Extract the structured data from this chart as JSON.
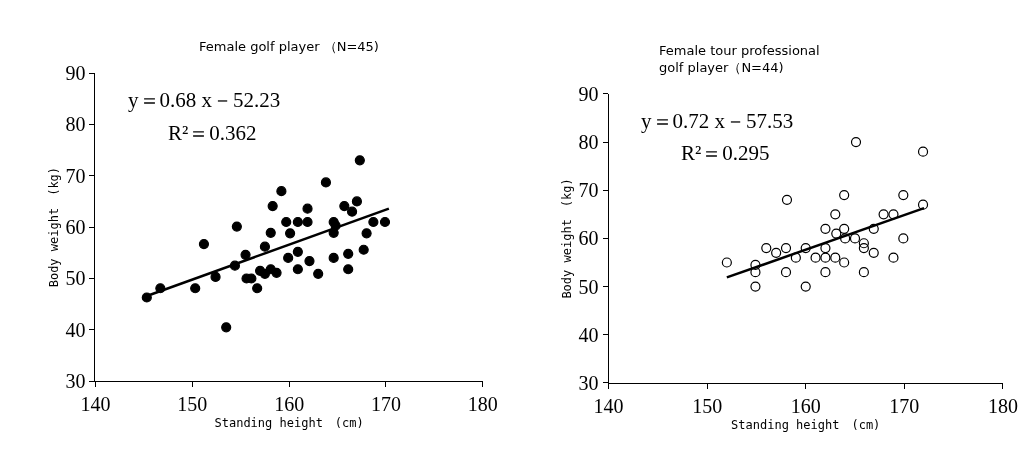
{
  "chart_data": [
    {
      "type": "scatter",
      "title": "Female golf player （N=45)",
      "xlabel": "Standing height　(cm)",
      "ylabel": "Body weight　(kg)",
      "xlim": [
        140,
        180
      ],
      "xticks": [
        140,
        150,
        160,
        170,
        180
      ],
      "ylim": [
        30,
        90
      ],
      "yticks": [
        30,
        40,
        50,
        60,
        70,
        80,
        90
      ],
      "annotations": [
        "y＝0.68 x－52.23",
        "R²＝0.362"
      ],
      "series": [
        {
          "color": "#000000",
          "marker": "circle",
          "x": [
            145.3,
            146.7,
            150.3,
            152.4,
            151.2,
            153.5,
            154.4,
            154.6,
            155.5,
            155.6,
            156.1,
            156.7,
            157.5,
            157.5,
            158.1,
            158.7,
            158.1,
            158.3,
            159.2,
            159.7,
            160.1,
            159.9,
            160.9,
            160.9,
            160.9,
            161.9,
            161.9,
            162.1,
            163.0,
            163.8,
            164.6,
            164.8,
            164.6,
            164.6,
            165.7,
            166.5,
            166.1,
            166.1,
            167.0,
            167.3,
            167.7,
            168.0,
            168.7,
            169.9,
            157.0
          ],
          "values": [
            46.3,
            48.1,
            48.1,
            50.3,
            56.7,
            40.5,
            52.5,
            60.1,
            54.6,
            50.0,
            50.0,
            48.1,
            56.2,
            50.9,
            51.8,
            51.1,
            58.9,
            64.1,
            67.0,
            61.0,
            58.8,
            54.0,
            55.2,
            51.8,
            61.0,
            61.0,
            63.6,
            53.4,
            50.9,
            68.7,
            61.0,
            60.3,
            58.9,
            54.0,
            64.1,
            63.0,
            54.8,
            51.8,
            65.0,
            73.0,
            55.6,
            58.8,
            61.0,
            61.0,
            51.5
          ]
        },
        {
          "type": "line",
          "color": "#000000",
          "x": [
            145.3,
            170.3
          ],
          "values": [
            46.6,
            63.6
          ]
        }
      ]
    },
    {
      "type": "scatter",
      "title": "Female tour professional golf player（N=44)",
      "xlabel": "Standing height　(cm)",
      "ylabel": "Body weight　(kg)",
      "xlim": [
        140,
        180
      ],
      "xticks": [
        140,
        150,
        160,
        170,
        180
      ],
      "ylim": [
        30,
        90
      ],
      "yticks": [
        30,
        40,
        50,
        60,
        70,
        80,
        90
      ],
      "annotations": [
        "y＝0.72 x－57.53",
        "R²＝0.295"
      ],
      "series": [
        {
          "color": "#000000",
          "marker": "circle-open",
          "x": [
            152.0,
            154.9,
            154.9,
            154.9,
            156.0,
            157.0,
            158.0,
            158.0,
            158.1,
            159.0,
            160.0,
            160.0,
            161.0,
            162.0,
            163.0,
            162.0,
            162.0,
            162.0,
            163.0,
            163.1,
            163.9,
            163.9,
            163.9,
            164.0,
            165.0,
            165.1,
            165.9,
            165.9,
            166.9,
            165.9,
            166.9,
            167.9,
            168.9,
            168.9,
            169.9,
            169.9,
            171.9,
            171.9
          ],
          "values": [
            55,
            53,
            50,
            54.5,
            58,
            57,
            58,
            53,
            68,
            56,
            58,
            50,
            56,
            56,
            56,
            58,
            53,
            62,
            65,
            61,
            62,
            69,
            55,
            60,
            60,
            80,
            59,
            58,
            57,
            53,
            62,
            65,
            65,
            56,
            69,
            60,
            67,
            78
          ]
        },
        {
          "type": "line",
          "color": "#000000",
          "x": [
            152,
            172
          ],
          "values": [
            51.9,
            66.3
          ]
        }
      ]
    }
  ]
}
